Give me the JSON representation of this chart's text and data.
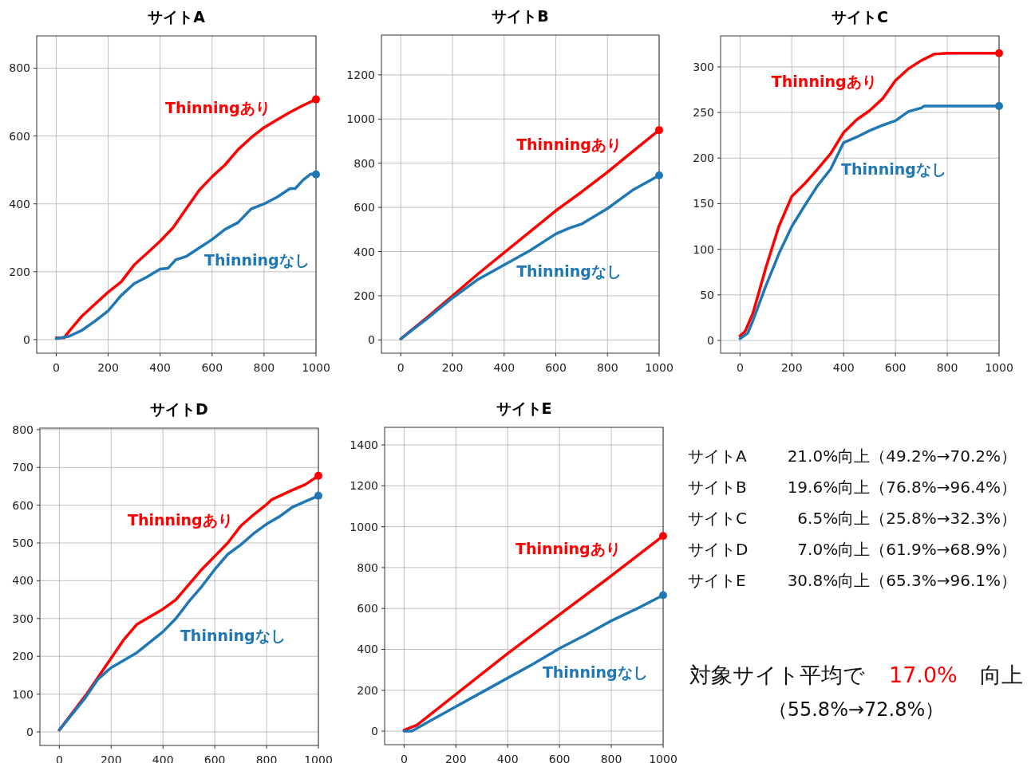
{
  "chart_data": [
    {
      "type": "line",
      "title": "サイトA",
      "xlim": [
        -75,
        1000
      ],
      "ylim": [
        -40,
        895
      ],
      "xticks": [
        0,
        200,
        400,
        600,
        800,
        1000
      ],
      "yticks": [
        0,
        200,
        400,
        600,
        800
      ],
      "grid": true,
      "series": [
        {
          "name": "Thinningあり",
          "color": "#ff0000",
          "x": [
            0,
            30,
            50,
            100,
            150,
            200,
            250,
            300,
            350,
            400,
            450,
            500,
            550,
            600,
            650,
            700,
            750,
            800,
            850,
            900,
            950,
            1000
          ],
          "values": [
            5,
            5,
            25,
            70,
            105,
            140,
            170,
            220,
            255,
            290,
            330,
            385,
            440,
            480,
            515,
            560,
            595,
            625,
            648,
            670,
            690,
            708
          ]
        },
        {
          "name": "Thinningなし",
          "color": "#1f77b4",
          "x": [
            0,
            50,
            100,
            150,
            200,
            250,
            300,
            350,
            400,
            430,
            460,
            500,
            550,
            600,
            650,
            700,
            750,
            800,
            850,
            900,
            920,
            950,
            980,
            1000
          ],
          "values": [
            3,
            10,
            28,
            55,
            85,
            130,
            165,
            185,
            208,
            210,
            235,
            245,
            270,
            295,
            325,
            345,
            385,
            400,
            420,
            445,
            445,
            470,
            488,
            487
          ]
        }
      ]
    },
    {
      "type": "line",
      "title": "サイトB",
      "xlim": [
        -75,
        1000
      ],
      "ylim": [
        -60,
        1380
      ],
      "xticks": [
        0,
        200,
        400,
        600,
        800,
        1000
      ],
      "yticks": [
        0,
        200,
        400,
        600,
        800,
        1000,
        1200
      ],
      "grid": true,
      "series": [
        {
          "name": "Thinningあり",
          "color": "#ff0000",
          "x": [
            0,
            100,
            200,
            300,
            400,
            500,
            600,
            700,
            800,
            900,
            1000
          ],
          "values": [
            5,
            100,
            200,
            300,
            395,
            490,
            585,
            670,
            760,
            855,
            950
          ]
        },
        {
          "name": "Thinningなし",
          "color": "#1f77b4",
          "x": [
            0,
            100,
            200,
            300,
            400,
            500,
            600,
            650,
            700,
            800,
            900,
            1000
          ],
          "values": [
            5,
            95,
            190,
            275,
            340,
            405,
            480,
            505,
            525,
            595,
            680,
            745
          ]
        }
      ]
    },
    {
      "type": "line",
      "title": "サイトC",
      "xlim": [
        -75,
        1000
      ],
      "ylim": [
        -14,
        334
      ],
      "xticks": [
        0,
        200,
        400,
        600,
        800,
        1000
      ],
      "yticks": [
        0,
        50,
        100,
        150,
        200,
        250,
        300
      ],
      "grid": true,
      "series": [
        {
          "name": "Thinningあり",
          "color": "#ff0000",
          "x": [
            0,
            20,
            50,
            100,
            150,
            200,
            250,
            300,
            350,
            400,
            450,
            500,
            550,
            600,
            650,
            700,
            750,
            800,
            1000
          ],
          "values": [
            5,
            10,
            30,
            80,
            125,
            158,
            172,
            188,
            205,
            228,
            242,
            252,
            265,
            285,
            298,
            307,
            314,
            315,
            315
          ]
        },
        {
          "name": "Thinningなし",
          "color": "#1f77b4",
          "x": [
            0,
            30,
            50,
            100,
            150,
            200,
            250,
            300,
            350,
            400,
            450,
            500,
            550,
            600,
            650,
            700,
            710,
            1000
          ],
          "values": [
            2,
            8,
            22,
            60,
            95,
            125,
            148,
            170,
            188,
            217,
            223,
            230,
            236,
            241,
            251,
            255,
            257,
            257
          ]
        }
      ]
    },
    {
      "type": "line",
      "title": "サイトD",
      "xlim": [
        -75,
        1000
      ],
      "ylim": [
        -36,
        804
      ],
      "xticks": [
        0,
        200,
        400,
        600,
        800,
        1000
      ],
      "yticks": [
        0,
        100,
        200,
        300,
        400,
        500,
        600,
        700,
        800
      ],
      "grid": true,
      "series": [
        {
          "name": "Thinningあり",
          "color": "#ff0000",
          "x": [
            0,
            100,
            200,
            250,
            300,
            400,
            450,
            500,
            550,
            600,
            650,
            700,
            750,
            800,
            820,
            900,
            950,
            1000
          ],
          "values": [
            5,
            95,
            195,
            245,
            285,
            325,
            350,
            390,
            430,
            465,
            500,
            545,
            575,
            602,
            615,
            640,
            655,
            678
          ]
        },
        {
          "name": "Thinningなし",
          "color": "#1f77b4",
          "x": [
            0,
            100,
            150,
            200,
            300,
            400,
            450,
            500,
            550,
            600,
            650,
            700,
            750,
            800,
            850,
            900,
            950,
            1000
          ],
          "values": [
            5,
            90,
            140,
            170,
            210,
            265,
            300,
            345,
            385,
            430,
            470,
            495,
            525,
            550,
            570,
            595,
            610,
            625
          ]
        }
      ]
    },
    {
      "type": "line",
      "title": "サイトE",
      "xlim": [
        -75,
        1000
      ],
      "ylim": [
        -66,
        1486
      ],
      "xticks": [
        0,
        200,
        400,
        600,
        800,
        1000
      ],
      "yticks": [
        0,
        200,
        400,
        600,
        800,
        1000,
        1200,
        1400
      ],
      "grid": true,
      "series": [
        {
          "name": "Thinningあり",
          "color": "#ff0000",
          "x": [
            0,
            50,
            200,
            400,
            600,
            800,
            1000
          ],
          "values": [
            5,
            30,
            180,
            380,
            570,
            760,
            955
          ]
        },
        {
          "name": "Thinningなし",
          "color": "#1f77b4",
          "x": [
            0,
            30,
            100,
            200,
            300,
            400,
            500,
            600,
            700,
            800,
            900,
            1000
          ],
          "values": [
            0,
            0,
            50,
            120,
            190,
            260,
            330,
            405,
            470,
            540,
            600,
            665
          ]
        }
      ]
    },
    {
      "type": "other",
      "annotations": [
        "サイトA",
        "21.0%向上（49.2%→70.2%）",
        "サイトB",
        "19.6%向上（76.8%→96.4%）",
        "サイトC",
        "6.5%向上（25.8%→32.3%）",
        "サイトD",
        "7.0%向上（61.9%→68.9%）",
        "サイトE",
        "30.8%向上（65.3%→96.1%）",
        "対象サイト平均で",
        "17.0%",
        "向上",
        "（55.8%→72.8%）"
      ]
    }
  ]
}
